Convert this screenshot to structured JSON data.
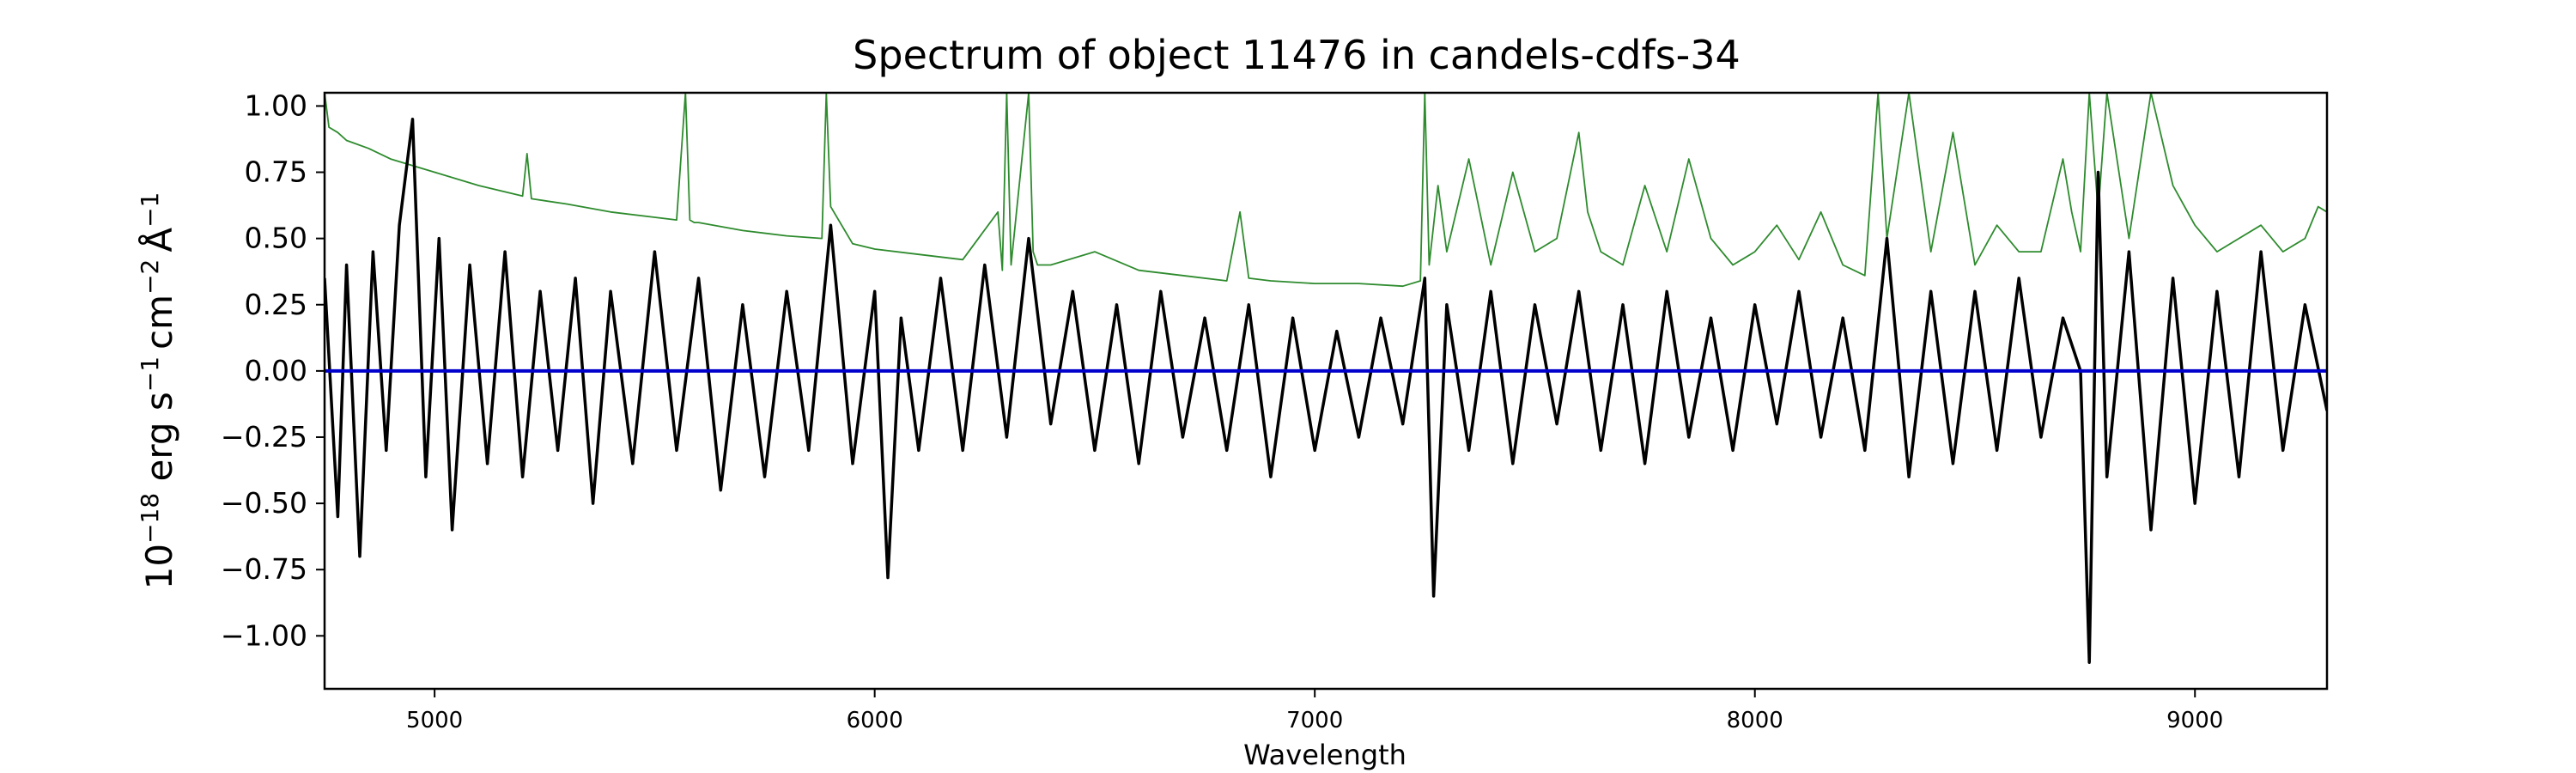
{
  "chart_data": {
    "type": "line",
    "title": "Spectrum of object 11476 in candels-cdfs-34",
    "xlabel": "Wavelength",
    "ylabel": {
      "base": "10",
      "exp": "−18",
      "unit1": " erg s",
      "exp1": "−1",
      "unit2": "cm",
      "exp2": "−2",
      "unit3": "Å",
      "exp3": "−1"
    },
    "xlim": [
      4750,
      9300
    ],
    "ylim": [
      -1.2,
      1.05
    ],
    "x_ticks": [
      5000,
      6000,
      7000,
      8000,
      9000
    ],
    "y_ticks": [
      1.0,
      0.75,
      0.5,
      0.25,
      0.0,
      -0.25,
      -0.5,
      -0.75,
      -1.0
    ],
    "y_tick_labels": [
      "1.00",
      "0.75",
      "0.50",
      "0.25",
      "0.00",
      "−0.25",
      "−0.50",
      "−0.75",
      "−1.00"
    ],
    "grid": false,
    "legend": "none",
    "series": [
      {
        "role": "flux",
        "color": "#000000",
        "x": [
          4750,
          4780,
          4800,
          4830,
          4860,
          4890,
          4920,
          4950,
          4980,
          5010,
          5040,
          5080,
          5120,
          5160,
          5200,
          5240,
          5280,
          5320,
          5360,
          5400,
          5450,
          5500,
          5550,
          5600,
          5650,
          5700,
          5750,
          5800,
          5850,
          5900,
          5950,
          6000,
          6030,
          6060,
          6100,
          6150,
          6200,
          6250,
          6300,
          6350,
          6400,
          6450,
          6500,
          6550,
          6600,
          6650,
          6700,
          6750,
          6800,
          6850,
          6900,
          6950,
          7000,
          7050,
          7100,
          7150,
          7200,
          7250,
          7270,
          7300,
          7350,
          7400,
          7450,
          7500,
          7550,
          7600,
          7650,
          7700,
          7750,
          7800,
          7850,
          7900,
          7950,
          8000,
          8050,
          8100,
          8150,
          8200,
          8250,
          8300,
          8350,
          8400,
          8450,
          8500,
          8550,
          8600,
          8650,
          8700,
          8740,
          8760,
          8780,
          8800,
          8850,
          8900,
          8950,
          9000,
          9050,
          9100,
          9150,
          9200,
          9250,
          9300
        ],
        "y": [
          0.35,
          -0.55,
          0.4,
          -0.7,
          0.45,
          -0.3,
          0.55,
          0.95,
          -0.4,
          0.5,
          -0.6,
          0.4,
          -0.35,
          0.45,
          -0.4,
          0.3,
          -0.3,
          0.35,
          -0.5,
          0.3,
          -0.35,
          0.45,
          -0.3,
          0.35,
          -0.45,
          0.25,
          -0.4,
          0.3,
          -0.3,
          0.55,
          -0.35,
          0.3,
          -0.78,
          0.2,
          -0.3,
          0.35,
          -0.3,
          0.4,
          -0.25,
          0.5,
          -0.2,
          0.3,
          -0.3,
          0.25,
          -0.35,
          0.3,
          -0.25,
          0.2,
          -0.3,
          0.25,
          -0.4,
          0.2,
          -0.3,
          0.15,
          -0.25,
          0.2,
          -0.2,
          0.35,
          -0.85,
          0.25,
          -0.3,
          0.3,
          -0.35,
          0.25,
          -0.2,
          0.3,
          -0.3,
          0.25,
          -0.35,
          0.3,
          -0.25,
          0.2,
          -0.3,
          0.25,
          -0.2,
          0.3,
          -0.25,
          0.2,
          -0.3,
          0.5,
          -0.4,
          0.3,
          -0.35,
          0.3,
          -0.3,
          0.35,
          -0.25,
          0.2,
          0.0,
          -1.1,
          0.75,
          -0.4,
          0.45,
          -0.6,
          0.35,
          -0.5,
          0.3,
          -0.4,
          0.45,
          -0.3,
          0.25,
          -0.15
        ]
      },
      {
        "role": "noise",
        "color": "#2e8b2e",
        "x": [
          4750,
          4760,
          4780,
          4800,
          4850,
          4900,
          5000,
          5100,
          5200,
          5210,
          5220,
          5300,
          5400,
          5500,
          5550,
          5570,
          5580,
          5590,
          5600,
          5700,
          5800,
          5880,
          5890,
          5900,
          5950,
          6000,
          6100,
          6200,
          6280,
          6290,
          6300,
          6310,
          6350,
          6360,
          6370,
          6400,
          6500,
          6600,
          6700,
          6800,
          6830,
          6850,
          6900,
          7000,
          7100,
          7200,
          7240,
          7250,
          7260,
          7280,
          7300,
          7350,
          7400,
          7450,
          7500,
          7550,
          7600,
          7620,
          7650,
          7700,
          7750,
          7800,
          7850,
          7900,
          7950,
          8000,
          8050,
          8100,
          8150,
          8200,
          8250,
          8280,
          8300,
          8350,
          8400,
          8450,
          8500,
          8550,
          8600,
          8650,
          8700,
          8720,
          8740,
          8760,
          8780,
          8800,
          8850,
          8900,
          8950,
          9000,
          9050,
          9100,
          9150,
          9200,
          9250,
          9280,
          9300
        ],
        "y": [
          1.05,
          0.92,
          0.9,
          0.87,
          0.84,
          0.8,
          0.75,
          0.7,
          0.66,
          0.82,
          0.65,
          0.63,
          0.6,
          0.58,
          0.57,
          1.05,
          0.57,
          0.56,
          0.56,
          0.53,
          0.51,
          0.5,
          1.05,
          0.62,
          0.48,
          0.46,
          0.44,
          0.42,
          0.6,
          0.38,
          1.05,
          0.4,
          1.05,
          0.45,
          0.4,
          0.4,
          0.45,
          0.38,
          0.36,
          0.34,
          0.6,
          0.35,
          0.34,
          0.33,
          0.33,
          0.32,
          0.34,
          1.05,
          0.4,
          0.7,
          0.45,
          0.8,
          0.4,
          0.75,
          0.45,
          0.5,
          0.9,
          0.6,
          0.45,
          0.4,
          0.7,
          0.45,
          0.8,
          0.5,
          0.4,
          0.45,
          0.55,
          0.42,
          0.6,
          0.4,
          0.36,
          1.05,
          0.5,
          1.05,
          0.45,
          0.9,
          0.4,
          0.55,
          0.45,
          0.45,
          0.8,
          0.6,
          0.45,
          1.05,
          0.6,
          1.05,
          0.5,
          1.05,
          0.7,
          0.55,
          0.45,
          0.5,
          0.55,
          0.45,
          0.5,
          0.62,
          0.6
        ]
      },
      {
        "role": "zero-line",
        "color": "#0000cc",
        "x": [
          4750,
          9300
        ],
        "y": [
          0.0,
          0.0
        ]
      }
    ]
  }
}
